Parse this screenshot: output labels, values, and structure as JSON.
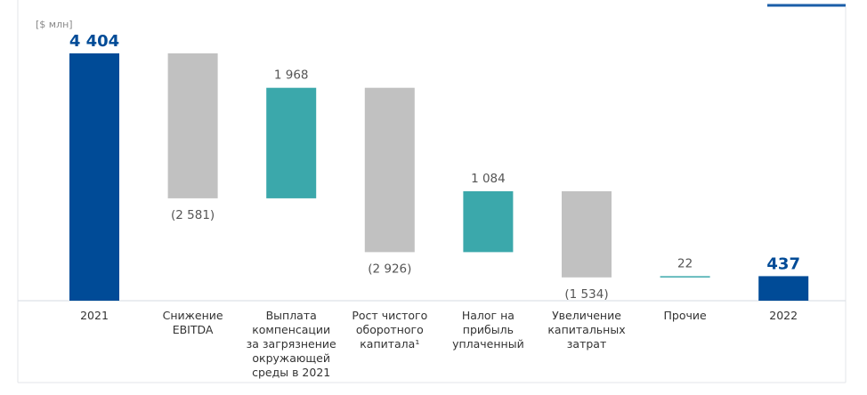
{
  "chart_data": {
    "type": "waterfall",
    "unit_label": "[$ млн]",
    "categories": [
      "2021",
      "Снижение\nEBITDA",
      "Выплата\nкомпенсации\nза загрязнение\nокружающей\nсреды в 2021",
      "Рост чистого\nоборотного\nкапитала¹",
      "Налог на\nприбыль\nуплаченный",
      "Увеличение\nкапитальных\nзатрат",
      "Прочие",
      "2022"
    ],
    "values": [
      4404,
      -2581,
      1968,
      -2926,
      1084,
      -1534,
      22,
      437
    ],
    "value_labels": [
      "4 404",
      "(2 581)",
      "1 968",
      "(2 926)",
      "1 084",
      "(1 534)",
      "22",
      "437"
    ],
    "colors": {
      "total": "#004b97",
      "increase": "#3ba8ab",
      "decrease": "#c1c1c1"
    }
  }
}
